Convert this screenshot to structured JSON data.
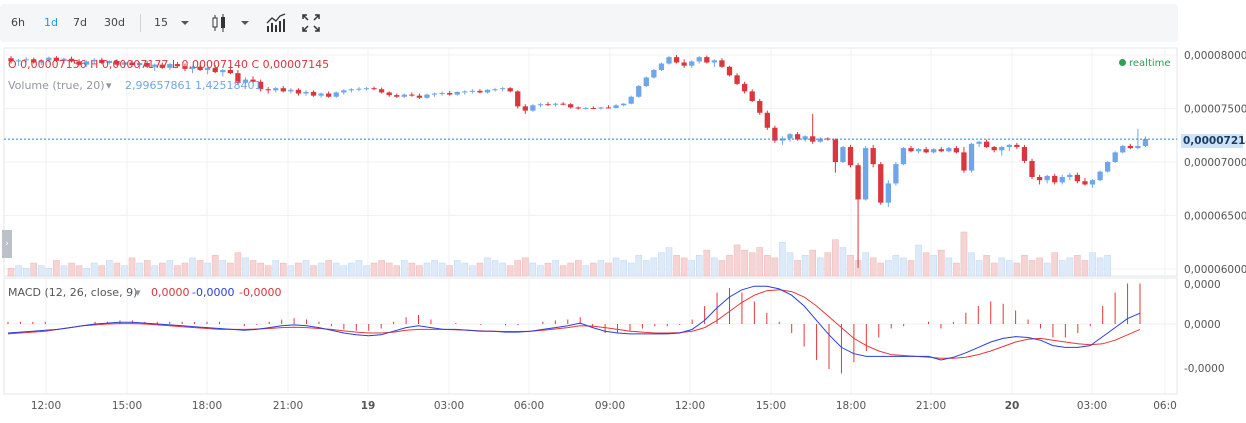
{
  "toolbar": {
    "ranges": [
      "6h",
      "1d",
      "7d",
      "30d"
    ],
    "active_range": "1d",
    "interval": "15"
  },
  "price_legend": {
    "text": "O 0,00007156 H 0,00007177 L 0,00007140 C 0,00007145"
  },
  "volume_legend": {
    "label": "Volume (true, 20)",
    "value": "2,99657861 1,42518401"
  },
  "realtime_label": "realtime",
  "macd_legend": {
    "label": "MACD (12, 26, close, 9)",
    "values": [
      "0,0000",
      "-0,0000",
      "-0,0000"
    ]
  },
  "price_axis": {
    "ticks": [
      "0,00008000",
      "0,00007500",
      "0,00007000",
      "0,00006500",
      "0,00006000"
    ],
    "current": "0,00007214"
  },
  "macd_axis": {
    "ticks": [
      "0,0000",
      "0,0000",
      "-0,0000"
    ]
  },
  "time_axis": {
    "ticks": [
      "12:00",
      "15:00",
      "18:00",
      "21:00",
      "19",
      "03:00",
      "06:00",
      "09:00",
      "12:00",
      "15:00",
      "18:00",
      "21:00",
      "20",
      "03:00",
      "06:0"
    ]
  },
  "colors": {
    "up": "#6fa6ea",
    "down": "#d9363e",
    "macd_line": "#2a3fd8",
    "signal_line": "#e6373a",
    "volume_up": "#dceaf9",
    "volume_down": "#f6d4d4",
    "current_price": "#2f7fd0",
    "realtime": "#2e9e52"
  },
  "chart_data": {
    "type": "candlestick",
    "price_scale": [
      6e-05,
      8e-05
    ],
    "current_price": 7.214e-05,
    "candles": [
      [
        7.97e-05,
        7.99e-05,
        7.92e-05,
        7.94e-05
      ],
      [
        7.94e-05,
        7.965e-05,
        7.9e-05,
        7.95e-05
      ],
      [
        7.95e-05,
        7.98e-05,
        7.93e-05,
        7.96e-05
      ],
      [
        7.96e-05,
        7.975e-05,
        7.92e-05,
        7.93e-05
      ],
      [
        7.93e-05,
        7.96e-05,
        7.905e-05,
        7.95e-05
      ],
      [
        7.95e-05,
        7.985e-05,
        7.93e-05,
        7.975e-05
      ],
      [
        7.975e-05,
        7.99e-05,
        7.935e-05,
        7.945e-05
      ],
      [
        7.945e-05,
        7.975e-05,
        7.92e-05,
        7.965e-05
      ],
      [
        7.965e-05,
        7.985e-05,
        7.93e-05,
        7.94e-05
      ],
      [
        7.94e-05,
        7.96e-05,
        7.9e-05,
        7.91e-05
      ],
      [
        7.91e-05,
        7.95e-05,
        7.89e-05,
        7.94e-05
      ],
      [
        7.94e-05,
        7.97e-05,
        7.92e-05,
        7.955e-05
      ],
      [
        7.955e-05,
        7.975e-05,
        7.915e-05,
        7.925e-05
      ],
      [
        7.925e-05,
        7.95e-05,
        7.91e-05,
        7.945e-05
      ],
      [
        7.945e-05,
        7.96e-05,
        7.9e-05,
        7.91e-05
      ],
      [
        7.91e-05,
        7.94e-05,
        7.88e-05,
        7.93e-05
      ],
      [
        7.93e-05,
        7.95e-05,
        7.89e-05,
        7.905e-05
      ],
      [
        7.905e-05,
        7.935e-05,
        7.87e-05,
        7.925e-05
      ],
      [
        7.925e-05,
        7.945e-05,
        7.88e-05,
        7.89e-05
      ],
      [
        7.89e-05,
        7.92e-05,
        7.85e-05,
        7.91e-05
      ],
      [
        7.91e-05,
        7.93e-05,
        7.87e-05,
        7.88e-05
      ],
      [
        7.88e-05,
        7.925e-05,
        7.86e-05,
        7.915e-05
      ],
      [
        7.915e-05,
        7.935e-05,
        7.88e-05,
        7.895e-05
      ],
      [
        7.895e-05,
        7.92e-05,
        7.85e-05,
        7.87e-05
      ],
      [
        7.87e-05,
        7.9e-05,
        7.83e-05,
        7.89e-05
      ],
      [
        7.89e-05,
        7.91e-05,
        7.85e-05,
        7.86e-05
      ],
      [
        7.86e-05,
        7.89e-05,
        7.82e-05,
        7.88e-05
      ],
      [
        7.88e-05,
        7.905e-05,
        7.83e-05,
        7.84e-05
      ],
      [
        7.84e-05,
        7.87e-05,
        7.8e-05,
        7.86e-05
      ],
      [
        7.86e-05,
        7.88e-05,
        7.82e-05,
        7.83e-05
      ],
      [
        7.83e-05,
        7.86e-05,
        7.72e-05,
        7.74e-05
      ],
      [
        7.74e-05,
        7.79e-05,
        7.72e-05,
        7.77e-05
      ],
      [
        7.77e-05,
        7.8e-05,
        7.73e-05,
        7.75e-05
      ],
      [
        7.75e-05,
        7.77e-05,
        7.66e-05,
        7.68e-05
      ],
      [
        7.68e-05,
        7.7e-05,
        7.64e-05,
        7.67e-05
      ],
      [
        7.67e-05,
        7.7e-05,
        7.65e-05,
        7.69e-05
      ],
      [
        7.69e-05,
        7.71e-05,
        7.65e-05,
        7.66e-05
      ],
      [
        7.66e-05,
        7.69e-05,
        7.64e-05,
        7.675e-05
      ],
      [
        7.675e-05,
        7.69e-05,
        7.62e-05,
        7.64e-05
      ],
      [
        7.64e-05,
        7.67e-05,
        7.62e-05,
        7.655e-05
      ],
      [
        7.655e-05,
        7.67e-05,
        7.61e-05,
        7.62e-05
      ],
      [
        7.62e-05,
        7.65e-05,
        7.6e-05,
        7.64e-05
      ],
      [
        7.64e-05,
        7.66e-05,
        7.6e-05,
        7.61e-05
      ],
      [
        7.61e-05,
        7.66e-05,
        7.6e-05,
        7.65e-05
      ],
      [
        7.65e-05,
        7.68e-05,
        7.63e-05,
        7.67e-05
      ],
      [
        7.67e-05,
        7.69e-05,
        7.65e-05,
        7.68e-05
      ],
      [
        7.68e-05,
        7.7e-05,
        7.66e-05,
        7.685e-05
      ],
      [
        7.685e-05,
        7.7e-05,
        7.67e-05,
        7.69e-05
      ],
      [
        7.69e-05,
        7.705e-05,
        7.67e-05,
        7.68e-05
      ],
      [
        7.68e-05,
        7.695e-05,
        7.64e-05,
        7.65e-05
      ],
      [
        7.65e-05,
        7.66e-05,
        7.61e-05,
        7.625e-05
      ],
      [
        7.625e-05,
        7.64e-05,
        7.6e-05,
        7.61e-05
      ],
      [
        7.61e-05,
        7.64e-05,
        7.6e-05,
        7.63e-05
      ],
      [
        7.63e-05,
        7.65e-05,
        7.61e-05,
        7.62e-05
      ],
      [
        7.62e-05,
        7.64e-05,
        7.59e-05,
        7.6e-05
      ],
      [
        7.6e-05,
        7.64e-05,
        7.59e-05,
        7.63e-05
      ],
      [
        7.63e-05,
        7.65e-05,
        7.61e-05,
        7.64e-05
      ],
      [
        7.64e-05,
        7.66e-05,
        7.62e-05,
        7.645e-05
      ],
      [
        7.645e-05,
        7.665e-05,
        7.62e-05,
        7.63e-05
      ],
      [
        7.63e-05,
        7.66e-05,
        7.62e-05,
        7.655e-05
      ],
      [
        7.655e-05,
        7.67e-05,
        7.63e-05,
        7.66e-05
      ],
      [
        7.66e-05,
        7.68e-05,
        7.64e-05,
        7.665e-05
      ],
      [
        7.665e-05,
        7.68e-05,
        7.64e-05,
        7.65e-05
      ],
      [
        7.65e-05,
        7.68e-05,
        7.64e-05,
        7.675e-05
      ],
      [
        7.675e-05,
        7.69e-05,
        7.66e-05,
        7.68e-05
      ],
      [
        7.68e-05,
        7.7e-05,
        7.66e-05,
        7.69e-05
      ],
      [
        7.69e-05,
        7.7e-05,
        7.65e-05,
        7.66e-05
      ],
      [
        7.66e-05,
        7.67e-05,
        7.5e-05,
        7.52e-05
      ],
      [
        7.52e-05,
        7.54e-05,
        7.45e-05,
        7.48e-05
      ],
      [
        7.48e-05,
        7.54e-05,
        7.47e-05,
        7.53e-05
      ],
      [
        7.53e-05,
        7.55e-05,
        7.51e-05,
        7.54e-05
      ],
      [
        7.54e-05,
        7.56e-05,
        7.525e-05,
        7.535e-05
      ],
      [
        7.535e-05,
        7.555e-05,
        7.52e-05,
        7.545e-05
      ],
      [
        7.545e-05,
        7.56e-05,
        7.53e-05,
        7.54e-05
      ],
      [
        7.54e-05,
        7.55e-05,
        7.5e-05,
        7.51e-05
      ],
      [
        7.51e-05,
        7.52e-05,
        7.49e-05,
        7.5e-05
      ],
      [
        7.5e-05,
        7.515e-05,
        7.49e-05,
        7.505e-05
      ],
      [
        7.505e-05,
        7.52e-05,
        7.495e-05,
        7.5e-05
      ],
      [
        7.5e-05,
        7.515e-05,
        7.49e-05,
        7.51e-05
      ],
      [
        7.51e-05,
        7.53e-05,
        7.5e-05,
        7.505e-05
      ],
      [
        7.505e-05,
        7.54e-05,
        7.5e-05,
        7.53e-05
      ],
      [
        7.53e-05,
        7.55e-05,
        7.52e-05,
        7.545e-05
      ],
      [
        7.545e-05,
        7.62e-05,
        7.54e-05,
        7.61e-05
      ],
      [
        7.61e-05,
        7.72e-05,
        7.6e-05,
        7.71e-05
      ],
      [
        7.71e-05,
        7.8e-05,
        7.7e-05,
        7.79e-05
      ],
      [
        7.79e-05,
        7.87e-05,
        7.78e-05,
        7.86e-05
      ],
      [
        7.86e-05,
        7.93e-05,
        7.85e-05,
        7.92e-05
      ],
      [
        7.92e-05,
        7.99e-05,
        7.91e-05,
        7.98e-05
      ],
      [
        7.98e-05,
        8e-05,
        7.92e-05,
        7.93e-05
      ],
      [
        7.93e-05,
        7.96e-05,
        7.88e-05,
        7.9e-05
      ],
      [
        7.9e-05,
        7.95e-05,
        7.88e-05,
        7.94e-05
      ],
      [
        7.94e-05,
        7.99e-05,
        7.92e-05,
        7.98e-05
      ],
      [
        7.98e-05,
        7.995e-05,
        7.92e-05,
        7.93e-05
      ],
      [
        7.93e-05,
        7.96e-05,
        7.89e-05,
        7.95e-05
      ],
      [
        7.95e-05,
        7.97e-05,
        7.88e-05,
        7.89e-05
      ],
      [
        7.89e-05,
        7.9e-05,
        7.8e-05,
        7.81e-05
      ],
      [
        7.81e-05,
        7.83e-05,
        7.72e-05,
        7.73e-05
      ],
      [
        7.73e-05,
        7.75e-05,
        7.64e-05,
        7.66e-05
      ],
      [
        7.66e-05,
        7.68e-05,
        7.56e-05,
        7.57e-05
      ],
      [
        7.57e-05,
        7.59e-05,
        7.44e-05,
        7.46e-05
      ],
      [
        7.46e-05,
        7.48e-05,
        7.3e-05,
        7.32e-05
      ],
      [
        7.32e-05,
        7.34e-05,
        7.18e-05,
        7.2e-05
      ],
      [
        7.2e-05,
        7.24e-05,
        7.16e-05,
        7.22e-05
      ],
      [
        7.22e-05,
        7.27e-05,
        7.19e-05,
        7.26e-05
      ],
      [
        7.26e-05,
        7.28e-05,
        7.2e-05,
        7.21e-05
      ],
      [
        7.21e-05,
        7.25e-05,
        7.19e-05,
        7.24e-05
      ],
      [
        7.24e-05,
        7.45e-05,
        7.17e-05,
        7.19e-05
      ],
      [
        7.19e-05,
        7.23e-05,
        7.18e-05,
        7.22e-05
      ],
      [
        7.22e-05,
        7.23e-05,
        7.2e-05,
        7.21e-05
      ],
      [
        7.21e-05,
        7.22e-05,
        6.9e-05,
        7e-05
      ],
      [
        7e-05,
        7.15e-05,
        6.99e-05,
        7.14e-05
      ],
      [
        7.14e-05,
        7.16e-05,
        6.95e-05,
        6.97e-05
      ],
      [
        6.97e-05,
        6.99e-05,
        6.01e-05,
        6.65e-05
      ],
      [
        6.65e-05,
        7.15e-05,
        6.64e-05,
        7.13e-05
      ],
      [
        7.13e-05,
        7.16e-05,
        6.95e-05,
        6.98e-05
      ],
      [
        6.98e-05,
        7e-05,
        6.6e-05,
        6.62e-05
      ],
      [
        6.62e-05,
        6.83e-05,
        6.58e-05,
        6.8e-05
      ],
      [
        6.8e-05,
        7e-05,
        6.78e-05,
        6.98e-05
      ],
      [
        6.98e-05,
        7.14e-05,
        6.97e-05,
        7.13e-05
      ],
      [
        7.13e-05,
        7.15e-05,
        7.09e-05,
        7.1e-05
      ],
      [
        7.1e-05,
        7.13e-05,
        7.08e-05,
        7.12e-05
      ],
      [
        7.12e-05,
        7.14e-05,
        7.08e-05,
        7.09e-05
      ],
      [
        7.09e-05,
        7.13e-05,
        7.08e-05,
        7.12e-05
      ],
      [
        7.12e-05,
        7.14e-05,
        7.09e-05,
        7.1e-05
      ],
      [
        7.1e-05,
        7.14e-05,
        7.09e-05,
        7.13e-05
      ],
      [
        7.13e-05,
        7.15e-05,
        7.08e-05,
        7.09e-05
      ],
      [
        7.09e-05,
        7.14e-05,
        6.9e-05,
        6.92e-05
      ],
      [
        6.92e-05,
        7.18e-05,
        6.9e-05,
        7.17e-05
      ],
      [
        7.17e-05,
        7.2e-05,
        7.14e-05,
        7.19e-05
      ],
      [
        7.19e-05,
        7.21e-05,
        7.13e-05,
        7.14e-05
      ],
      [
        7.14e-05,
        7.15e-05,
        7.09e-05,
        7.11e-05
      ],
      [
        7.11e-05,
        7.15e-05,
        7.06e-05,
        7.14e-05
      ],
      [
        7.14e-05,
        7.17e-05,
        7.1e-05,
        7.16e-05
      ],
      [
        7.16e-05,
        7.18e-05,
        7.12e-05,
        7.14e-05
      ],
      [
        7.14e-05,
        7.16e-05,
        6.99e-05,
        7.01e-05
      ],
      [
        7.01e-05,
        7.03e-05,
        6.84e-05,
        6.86e-05
      ],
      [
        6.86e-05,
        6.88e-05,
        6.79e-05,
        6.83e-05
      ],
      [
        6.83e-05,
        6.88e-05,
        6.8e-05,
        6.87e-05
      ],
      [
        6.87e-05,
        6.89e-05,
        6.79e-05,
        6.81e-05
      ],
      [
        6.81e-05,
        6.88e-05,
        6.79e-05,
        6.86e-05
      ],
      [
        6.86e-05,
        6.9e-05,
        6.83e-05,
        6.88e-05
      ],
      [
        6.88e-05,
        6.9e-05,
        6.8e-05,
        6.82e-05
      ],
      [
        6.82e-05,
        6.85e-05,
        6.78e-05,
        6.79e-05
      ],
      [
        6.79e-05,
        6.84e-05,
        6.76e-05,
        6.83e-05
      ],
      [
        6.83e-05,
        6.92e-05,
        6.82e-05,
        6.91e-05
      ],
      [
        6.91e-05,
        7.01e-05,
        6.9e-05,
        7e-05
      ],
      [
        7e-05,
        7.1e-05,
        6.99e-05,
        7.09e-05
      ],
      [
        7.09e-05,
        7.16e-05,
        7.08e-05,
        7.15e-05
      ],
      [
        7.15e-05,
        7.17e-05,
        7.12e-05,
        7.13e-05
      ],
      [
        7.13e-05,
        7.31e-05,
        7.12e-05,
        7.15e-05
      ],
      [
        7.15e-05,
        7.24e-05,
        7.14e-05,
        7.214e-05
      ]
    ],
    "volumes": [
      3,
      4,
      3,
      5,
      4,
      3,
      6,
      4,
      5,
      4,
      3,
      5,
      4,
      6,
      5,
      4,
      7,
      5,
      6,
      4,
      5,
      6,
      4,
      5,
      7,
      6,
      5,
      8,
      6,
      5,
      9,
      7,
      6,
      5,
      4,
      6,
      5,
      4,
      5,
      6,
      4,
      5,
      6,
      5,
      4,
      5,
      6,
      4,
      5,
      6,
      5,
      4,
      6,
      5,
      4,
      5,
      6,
      5,
      4,
      6,
      5,
      4,
      5,
      7,
      6,
      5,
      4,
      6,
      7,
      5,
      4,
      5,
      6,
      4,
      5,
      6,
      4,
      5,
      6,
      5,
      7,
      6,
      5,
      8,
      6,
      7,
      9,
      11,
      8,
      7,
      6,
      8,
      10,
      7,
      6,
      8,
      12,
      10,
      9,
      11,
      8,
      7,
      13,
      9,
      6,
      8,
      10,
      7,
      9,
      14,
      11,
      8,
      6,
      9,
      7,
      5,
      6,
      8,
      7,
      6,
      12,
      9,
      8,
      10,
      7,
      5,
      17,
      9,
      6,
      8,
      5,
      7,
      6,
      5,
      8,
      6,
      7,
      5,
      9,
      6,
      7,
      8,
      6,
      9,
      7,
      8
    ],
    "macd": {
      "macd_line": [
        -0.5,
        -0.45,
        -0.4,
        -0.35,
        -0.3,
        -0.2,
        -0.1,
        0.0,
        0.05,
        0.1,
        0.1,
        0.05,
        0.0,
        -0.05,
        -0.1,
        -0.15,
        -0.2,
        -0.25,
        -0.3,
        -0.35,
        -0.3,
        -0.2,
        -0.1,
        -0.05,
        -0.1,
        -0.2,
        -0.35,
        -0.5,
        -0.6,
        -0.65,
        -0.6,
        -0.4,
        -0.2,
        -0.1,
        -0.2,
        -0.3,
        -0.3,
        -0.35,
        -0.4,
        -0.4,
        -0.45,
        -0.45,
        -0.4,
        -0.3,
        -0.2,
        -0.1,
        0.05,
        -0.2,
        -0.4,
        -0.5,
        -0.55,
        -0.55,
        -0.55,
        -0.55,
        -0.5,
        -0.3,
        0.2,
        0.9,
        1.5,
        1.9,
        2.1,
        2.1,
        1.95,
        1.6,
        1.0,
        0.2,
        -0.6,
        -1.3,
        -1.65,
        -1.8,
        -1.8,
        -1.8,
        -1.8,
        -1.8,
        -1.8,
        -2.0,
        -1.85,
        -1.6,
        -1.3,
        -1.0,
        -0.8,
        -0.7,
        -0.75,
        -0.9,
        -1.2,
        -1.3,
        -1.3,
        -1.2,
        -0.7,
        -0.2,
        0.3,
        0.6
      ],
      "signal_line": [
        -0.55,
        -0.5,
        -0.45,
        -0.4,
        -0.3,
        -0.2,
        -0.1,
        -0.05,
        0.0,
        0.02,
        0.02,
        0.0,
        -0.05,
        -0.1,
        -0.15,
        -0.2,
        -0.25,
        -0.3,
        -0.3,
        -0.3,
        -0.28,
        -0.25,
        -0.2,
        -0.18,
        -0.2,
        -0.25,
        -0.3,
        -0.38,
        -0.45,
        -0.5,
        -0.5,
        -0.45,
        -0.35,
        -0.3,
        -0.3,
        -0.3,
        -0.32,
        -0.35,
        -0.38,
        -0.4,
        -0.42,
        -0.42,
        -0.4,
        -0.35,
        -0.28,
        -0.2,
        -0.1,
        -0.12,
        -0.2,
        -0.3,
        -0.4,
        -0.45,
        -0.5,
        -0.5,
        -0.48,
        -0.4,
        -0.2,
        0.2,
        0.7,
        1.2,
        1.6,
        1.85,
        1.9,
        1.8,
        1.5,
        1.0,
        0.4,
        -0.2,
        -0.8,
        -1.2,
        -1.5,
        -1.7,
        -1.75,
        -1.8,
        -1.85,
        -1.9,
        -1.9,
        -1.85,
        -1.7,
        -1.5,
        -1.25,
        -1.0,
        -0.85,
        -0.8,
        -0.9,
        -1.0,
        -1.1,
        -1.15,
        -1.1,
        -0.9,
        -0.6,
        -0.3
      ]
    },
    "price_ticks": [
      8e-05,
      7.5e-05,
      7e-05,
      6.5e-05,
      6e-05
    ]
  }
}
